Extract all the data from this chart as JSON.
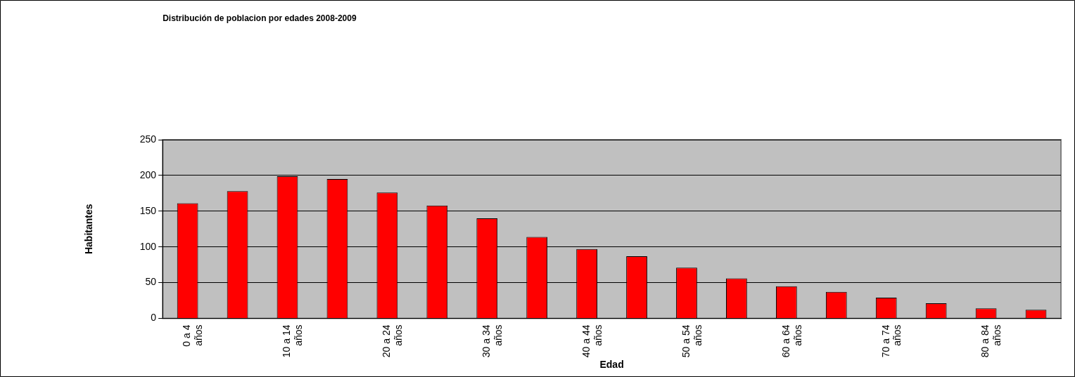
{
  "chart_data": {
    "type": "bar",
    "title": "Distribución de poblacion por edades 2008-2009",
    "xlabel": "Edad",
    "ylabel": "Habitantes",
    "categories": [
      "0 a 4 años",
      null,
      "10 a 14 años",
      null,
      "20 a 24 años",
      null,
      "30 a 34 años",
      null,
      "40 a 44 años",
      null,
      "50 a 54 años",
      null,
      "60 a 64 años",
      null,
      "70 a 74 años",
      null,
      "80 a 84 años",
      null
    ],
    "values": [
      161,
      178,
      199,
      195,
      176,
      158,
      140,
      114,
      97,
      87,
      71,
      56,
      45,
      37,
      29,
      21,
      14,
      12
    ],
    "color": "#ff0000",
    "ylim": [
      0,
      250
    ],
    "yticks": [
      0,
      50,
      100,
      150,
      200,
      250
    ],
    "grid": "y",
    "legend": false
  }
}
